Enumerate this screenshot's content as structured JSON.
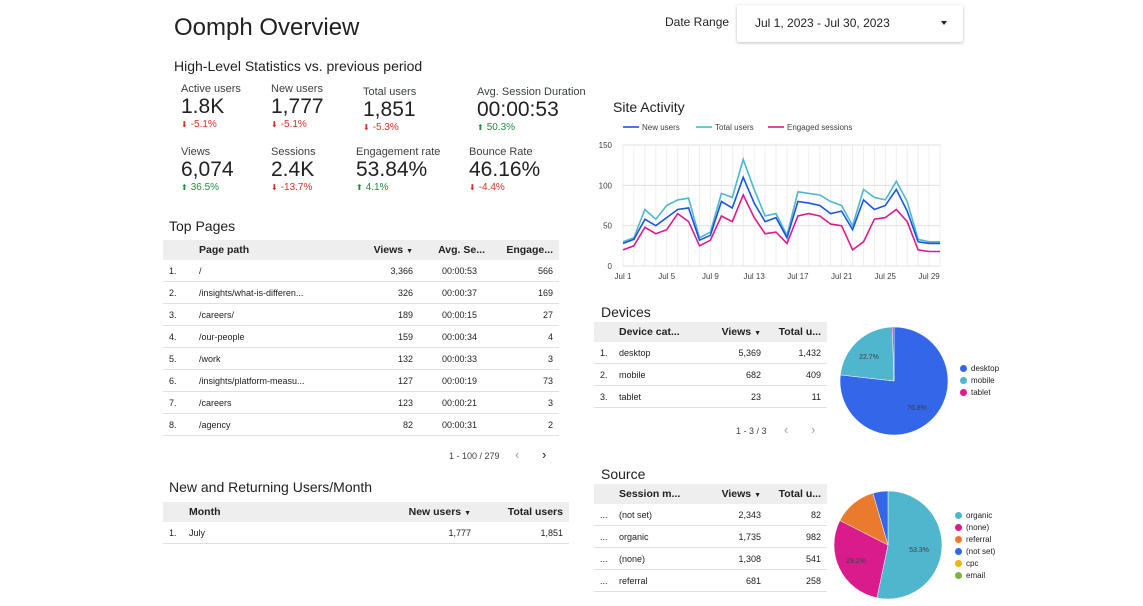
{
  "header": {
    "title": "Oomph Overview",
    "date_label": "Date Range",
    "date_value": "Jul 1, 2023 - Jul 30, 2023"
  },
  "stats": {
    "title": "High-Level Statistics vs. previous period",
    "kpis": [
      {
        "label": "Active users",
        "value": "1.8K",
        "change": "-5.1%",
        "dir": "down"
      },
      {
        "label": "New users",
        "value": "1,777",
        "change": "-5.1%",
        "dir": "down"
      },
      {
        "label": "Total users",
        "value": "1,851",
        "change": "-5.3%",
        "dir": "down"
      },
      {
        "label": "Avg. Session Duration",
        "value": "00:00:53",
        "change": "50.3%",
        "dir": "up"
      },
      {
        "label": "Views",
        "value": "6,074",
        "change": "36.5%",
        "dir": "up"
      },
      {
        "label": "Sessions",
        "value": "2.4K",
        "change": "-13.7%",
        "dir": "down"
      },
      {
        "label": "Engagement rate",
        "value": "53.84%",
        "change": "4.1%",
        "dir": "up"
      },
      {
        "label": "Bounce Rate",
        "value": "46.16%",
        "change": "-4.4%",
        "dir": "down"
      }
    ]
  },
  "top_pages": {
    "title": "Top Pages",
    "headers": [
      "Page path",
      "Views",
      "Avg. Se...",
      "Engage..."
    ],
    "rows": [
      [
        "1.",
        "/",
        "3,366",
        "00:00:53",
        "566"
      ],
      [
        "2.",
        "/insights/what-is-differen...",
        "326",
        "00:00:37",
        "169"
      ],
      [
        "3.",
        "/careers/",
        "189",
        "00:00:15",
        "27"
      ],
      [
        "4.",
        "/our-people",
        "159",
        "00:00:34",
        "4"
      ],
      [
        "5.",
        "/work",
        "132",
        "00:00:33",
        "3"
      ],
      [
        "6.",
        "/insights/platform-measu...",
        "127",
        "00:00:19",
        "73"
      ],
      [
        "7.",
        "/careers",
        "123",
        "00:00:21",
        "3"
      ],
      [
        "8.",
        "/agency",
        "82",
        "00:00:31",
        "2"
      ]
    ],
    "pager": "1 - 100 / 279"
  },
  "returning": {
    "title": "New and Returning Users/Month",
    "headers": [
      "Month",
      "New users",
      "Total users"
    ],
    "rows": [
      [
        "1.",
        "July",
        "1,777",
        "1,851"
      ]
    ]
  },
  "site_activity": {
    "title": "Site Activity",
    "colors": {
      "new": "#1a56db",
      "total": "#4fb6cd",
      "engaged": "#d91b8c"
    }
  },
  "chart_data": {
    "type": "line",
    "title": "Site Activity",
    "x": [
      "Jul 1",
      "Jul 2",
      "Jul 3",
      "Jul 4",
      "Jul 5",
      "Jul 6",
      "Jul 7",
      "Jul 8",
      "Jul 9",
      "Jul 10",
      "Jul 11",
      "Jul 12",
      "Jul 13",
      "Jul 14",
      "Jul 15",
      "Jul 16",
      "Jul 17",
      "Jul 18",
      "Jul 19",
      "Jul 20",
      "Jul 21",
      "Jul 22",
      "Jul 23",
      "Jul 24",
      "Jul 25",
      "Jul 26",
      "Jul 27",
      "Jul 28",
      "Jul 29",
      "Jul 30"
    ],
    "x_tick_labels": [
      "Jul 1",
      "Jul 5",
      "Jul 9",
      "Jul 13",
      "Jul 17",
      "Jul 21",
      "Jul 25",
      "Jul 29"
    ],
    "y_ticks": [
      "0",
      "50",
      "100",
      "150"
    ],
    "ylim": [
      0,
      150
    ],
    "legend_position": "top",
    "series": [
      {
        "name": "New users",
        "values": [
          28,
          33,
          58,
          50,
          60,
          70,
          72,
          32,
          38,
          80,
          72,
          110,
          78,
          55,
          60,
          35,
          80,
          78,
          75,
          65,
          68,
          45,
          82,
          70,
          75,
          95,
          68,
          30,
          28,
          28
        ]
      },
      {
        "name": "Total users",
        "values": [
          30,
          35,
          70,
          58,
          75,
          82,
          84,
          35,
          42,
          90,
          85,
          132,
          95,
          62,
          65,
          38,
          92,
          90,
          88,
          80,
          75,
          50,
          95,
          85,
          82,
          105,
          80,
          33,
          30,
          30
        ]
      },
      {
        "name": "Engaged sessions",
        "values": [
          20,
          25,
          48,
          40,
          45,
          65,
          55,
          25,
          32,
          62,
          55,
          88,
          60,
          40,
          42,
          28,
          62,
          65,
          62,
          52,
          50,
          20,
          30,
          58,
          60,
          70,
          55,
          20,
          18,
          18
        ]
      }
    ]
  },
  "devices": {
    "title": "Devices",
    "headers": [
      "Device cat...",
      "Views",
      "Total u..."
    ],
    "rows": [
      [
        "1.",
        "desktop",
        "5,369",
        "1,432"
      ],
      [
        "2.",
        "mobile",
        "682",
        "409"
      ],
      [
        "3.",
        "tablet",
        "23",
        "11"
      ]
    ],
    "pager": "1 - 3 / 3",
    "pie": {
      "slices": [
        {
          "name": "desktop",
          "value": 76.8,
          "color": "#3366e8"
        },
        {
          "name": "mobile",
          "value": 22.7,
          "color": "#4fb6cd"
        },
        {
          "name": "tablet",
          "value": 0.5,
          "color": "#d91b8c"
        }
      ],
      "labels": [
        "76.8%",
        "22.7%"
      ]
    }
  },
  "source": {
    "title": "Source",
    "headers": [
      "Session m...",
      "Views",
      "Total u..."
    ],
    "rows": [
      [
        "...",
        "(not set)",
        "2,343",
        "82"
      ],
      [
        "...",
        "organic",
        "1,735",
        "982"
      ],
      [
        "...",
        "(none)",
        "1,308",
        "541"
      ],
      [
        "...",
        "referral",
        "681",
        "258"
      ]
    ],
    "pie": {
      "slices": [
        {
          "name": "organic",
          "value": 53.3,
          "color": "#4fb6cd"
        },
        {
          "name": "(none)",
          "value": 29.2,
          "color": "#d91b8c"
        },
        {
          "name": "referral",
          "value": 13.0,
          "color": "#ea7a2e"
        },
        {
          "name": "(not set)",
          "value": 4.5,
          "color": "#3366e8"
        },
        {
          "name": "cpc",
          "value": 0,
          "color": "#f2b400"
        },
        {
          "name": "email",
          "value": 0,
          "color": "#7cb342"
        }
      ],
      "labels": [
        "53.3%",
        "29.2%"
      ]
    }
  }
}
